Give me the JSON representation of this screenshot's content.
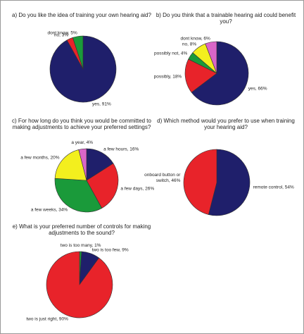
{
  "chart_data": [
    {
      "type": "pie",
      "title": "a) Do you like the idea of training your own hearing aid?",
      "values": [
        91,
        3,
        5
      ],
      "value_labels": [
        "yes, 91%",
        "no, 3%",
        "dont know, 5%"
      ],
      "colors": [
        "#1f1f6b",
        "#e8232a",
        "#1a9a3a"
      ]
    },
    {
      "type": "pie",
      "title": "b) Do you think that a trainable hearing aid could benefit you?",
      "values": [
        66,
        18,
        4,
        8,
        6
      ],
      "value_labels": [
        "yes, 66%",
        "possibly, 18%",
        "possibly not, 4%",
        "no, 8%",
        "dont know, 6%"
      ],
      "colors": [
        "#1f1f6b",
        "#e8232a",
        "#1a9a3a",
        "#f3ef1e",
        "#d966c8"
      ]
    },
    {
      "type": "pie",
      "title": "c) For how long do you think you would be committed to making adjustments to achieve your preferred settings?",
      "values": [
        16,
        26,
        34,
        20,
        4
      ],
      "value_labels": [
        "a few hours, 16%",
        "a few days, 26%",
        "a few weeks, 34%",
        "a few months, 20%",
        "a year, 4%"
      ],
      "colors": [
        "#1f1f6b",
        "#e8232a",
        "#1a9a3a",
        "#f3ef1e",
        "#d966c8"
      ]
    },
    {
      "type": "pie",
      "title": "d) Which method would you prefer to use when training your hearing aid?",
      "values": [
        54,
        46
      ],
      "value_labels": [
        "remote control, 54%",
        "onboard button or switch, 46%"
      ],
      "colors": [
        "#1f1f6b",
        "#e8232a"
      ]
    },
    {
      "type": "pie",
      "title": "e) What is your preferred number of controls for making adjustments to the sound?",
      "values": [
        1,
        9,
        90
      ],
      "value_labels": [
        "two is too many, 1%",
        "two is too few, 9%",
        "two is just right, 90%"
      ],
      "colors": [
        "#1a9a3a",
        "#1f1f6b",
        "#e8232a"
      ]
    }
  ]
}
